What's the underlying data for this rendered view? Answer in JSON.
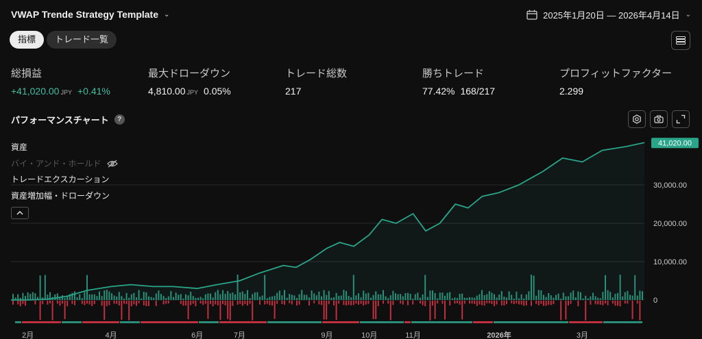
{
  "header": {
    "strategy_title": "VWAP Trende Strategy Template",
    "date_range": "2025年1月20日 — 2026年4月14日"
  },
  "tabs": [
    {
      "label": "指標",
      "active": true
    },
    {
      "label": "トレード一覧",
      "active": false
    }
  ],
  "stats": {
    "net_profit": {
      "label": "総損益",
      "value": "+41,020.00",
      "unit": "JPY",
      "secondary": "+0.41%"
    },
    "max_drawdown": {
      "label": "最大ドローダウン",
      "value": "4,810.00",
      "unit": "JPY",
      "secondary": "0.05%"
    },
    "total_trades": {
      "label": "トレード総数",
      "value": "217"
    },
    "win_trades": {
      "label": "勝ちトレード",
      "value": "77.42%",
      "secondary": "168/217"
    },
    "profit_factor": {
      "label": "プロフィットファクター",
      "value": "2.299"
    }
  },
  "performance": {
    "title": "パフォーマンスチャート",
    "help_icon": "question-icon",
    "tool_icons": [
      "settings-icon",
      "camera-icon",
      "fullscreen-icon"
    ]
  },
  "legend": {
    "equity": "資産",
    "buy_hold": "バイ・アンド・ホールド",
    "excursion": "トレードエクスカーション",
    "runup_drawdown": "資産増加幅・ドローダウン"
  },
  "colors": {
    "equity_line": "#2aa58a",
    "positive_bar": "#2a8f78",
    "negative_bar": "#c0303f",
    "last_value_badge": "#2aa58a"
  },
  "chart_data": {
    "type": "line",
    "last_value_label": "41,020.00",
    "y_tick_labels": [
      "0",
      "10,000.00",
      "20,000.00",
      "30,000.00"
    ],
    "y_ticks": [
      0,
      10000,
      20000,
      30000
    ],
    "ylim": [
      -5000,
      42000
    ],
    "x_tick_labels": [
      "2月",
      "4月",
      "6月",
      "7月",
      "9月",
      "10月",
      "11月",
      "2026年",
      "3月"
    ],
    "x_tick_dates": [
      "2025-02-01",
      "2025-04-01",
      "2025-06-01",
      "2025-07-01",
      "2025-09-01",
      "2025-10-01",
      "2025-11-01",
      "2026-01-01",
      "2026-03-01"
    ],
    "x_range": [
      "2025-01-20",
      "2026-04-14"
    ],
    "series": [
      {
        "x": [
          "2025-01-20",
          "2025-02-01",
          "2025-02-15",
          "2025-03-01",
          "2025-03-15",
          "2025-04-01",
          "2025-04-15",
          "2025-05-01",
          "2025-05-15",
          "2025-06-01",
          "2025-06-15",
          "2025-07-01",
          "2025-07-15",
          "2025-08-01",
          "2025-08-10",
          "2025-08-20",
          "2025-09-01",
          "2025-09-10",
          "2025-09-20",
          "2025-10-01",
          "2025-10-10",
          "2025-10-20",
          "2025-11-01",
          "2025-11-10",
          "2025-11-20",
          "2025-12-01",
          "2025-12-10",
          "2025-12-20",
          "2026-01-01",
          "2026-01-15",
          "2026-02-01",
          "2026-02-15",
          "2026-03-01",
          "2026-03-15",
          "2026-04-01",
          "2026-04-14"
        ],
        "values": [
          0,
          0,
          200,
          1000,
          2500,
          3500,
          4000,
          3500,
          3500,
          3000,
          4000,
          5000,
          7000,
          9000,
          8500,
          10500,
          13500,
          15000,
          14000,
          17000,
          21000,
          20000,
          22500,
          18000,
          20000,
          25000,
          24000,
          27000,
          28000,
          30000,
          33500,
          37000,
          36000,
          39000,
          40000,
          41020
        ]
      }
    ]
  }
}
